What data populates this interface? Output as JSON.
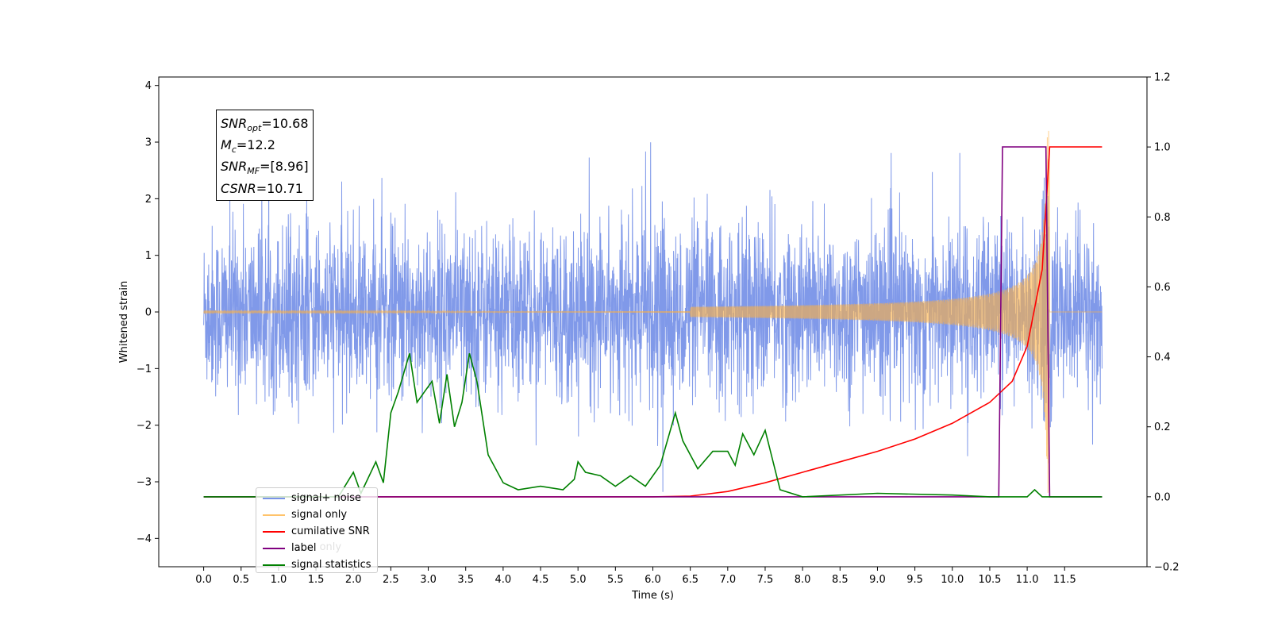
{
  "chart_data": {
    "type": "line",
    "xlabel": "Time (s)",
    "ylabel": "Whitened strain",
    "xlim": [
      -0.6,
      12.6
    ],
    "ylim_left": [
      -4.5,
      4.15
    ],
    "ylim_right": [
      -0.2,
      1.2
    ],
    "x_ticks": [
      "0.0",
      "0.5",
      "1.0",
      "1.5",
      "2.0",
      "2.5",
      "3.0",
      "3.5",
      "4.0",
      "4.5",
      "5.0",
      "5.5",
      "6.0",
      "6.5",
      "7.0",
      "7.5",
      "8.0",
      "8.5",
      "9.0",
      "9.5",
      "10.0",
      "10.5",
      "11.0",
      "11.5"
    ],
    "y_ticks_left": [
      "−4",
      "−3",
      "−2",
      "−1",
      "0",
      "1",
      "2",
      "3",
      "4"
    ],
    "y_ticks_right": [
      "−0.2",
      "0.0",
      "0.2",
      "0.4",
      "0.6",
      "0.8",
      "1.0",
      "1.2"
    ],
    "annotation": {
      "snr_opt": "=10.68",
      "mc": "=12.2",
      "snr_mf": "=[8.96]",
      "csnr": "=10.71"
    },
    "series": [
      {
        "name": "signal+ noise",
        "color": "#7994e8",
        "axis": "left",
        "x_range": [
          0.0,
          12.0
        ],
        "amplitude_range": [
          -4.1,
          3.75
        ]
      },
      {
        "name": "signal only",
        "color": "#ffc36b",
        "axis": "left",
        "x_range": [
          0.0,
          12.0
        ],
        "peak_time": 11.3
      },
      {
        "name": "cumilative SNR",
        "color": "#ff0000",
        "axis": "right",
        "x": [
          0.0,
          6.0,
          6.5,
          7.0,
          7.5,
          8.0,
          8.5,
          9.0,
          9.5,
          10.0,
          10.5,
          10.8,
          11.0,
          11.2,
          11.3,
          12.0
        ],
        "y": [
          0.0,
          0.0,
          0.002,
          0.015,
          0.04,
          0.07,
          0.1,
          0.13,
          0.165,
          0.21,
          0.27,
          0.33,
          0.43,
          0.65,
          1.0,
          1.0
        ]
      },
      {
        "name": "label",
        "color": "#800080",
        "axis": "right",
        "x": [
          0.0,
          10.62,
          10.67,
          11.25,
          11.3,
          12.0
        ],
        "y": [
          0.0,
          0.0,
          1.0,
          1.0,
          0.0,
          0.0
        ]
      },
      {
        "name": "signal statistics",
        "color": "#008000",
        "axis": "right",
        "x": [
          0.0,
          1.8,
          2.0,
          2.1,
          2.3,
          2.4,
          2.5,
          2.6,
          2.75,
          2.85,
          2.95,
          3.05,
          3.15,
          3.25,
          3.35,
          3.45,
          3.55,
          3.65,
          3.8,
          4.0,
          4.2,
          4.5,
          4.8,
          4.95,
          5.0,
          5.1,
          5.3,
          5.5,
          5.7,
          5.9,
          6.1,
          6.3,
          6.4,
          6.6,
          6.8,
          7.0,
          7.1,
          7.2,
          7.35,
          7.5,
          7.7,
          8.0,
          9.0,
          10.0,
          10.5,
          11.0,
          11.1,
          11.2,
          11.3,
          12.0
        ],
        "y": [
          0.0,
          0.0,
          0.07,
          0.01,
          0.1,
          0.04,
          0.24,
          0.3,
          0.41,
          0.27,
          0.3,
          0.33,
          0.21,
          0.35,
          0.2,
          0.27,
          0.41,
          0.33,
          0.12,
          0.04,
          0.02,
          0.03,
          0.02,
          0.05,
          0.1,
          0.07,
          0.06,
          0.03,
          0.06,
          0.03,
          0.09,
          0.24,
          0.16,
          0.08,
          0.13,
          0.13,
          0.09,
          0.18,
          0.12,
          0.19,
          0.02,
          0.0,
          0.01,
          0.005,
          0.0,
          0.0,
          0.02,
          0.0,
          0.0,
          0.0
        ]
      }
    ],
    "legend": {
      "placement": "lower-left",
      "labels": [
        "signal+ noise",
        "signal only",
        "cumilative SNR",
        "label",
        "signal statistics"
      ]
    },
    "legend_occluded_text": "label only",
    "grid": false
  }
}
